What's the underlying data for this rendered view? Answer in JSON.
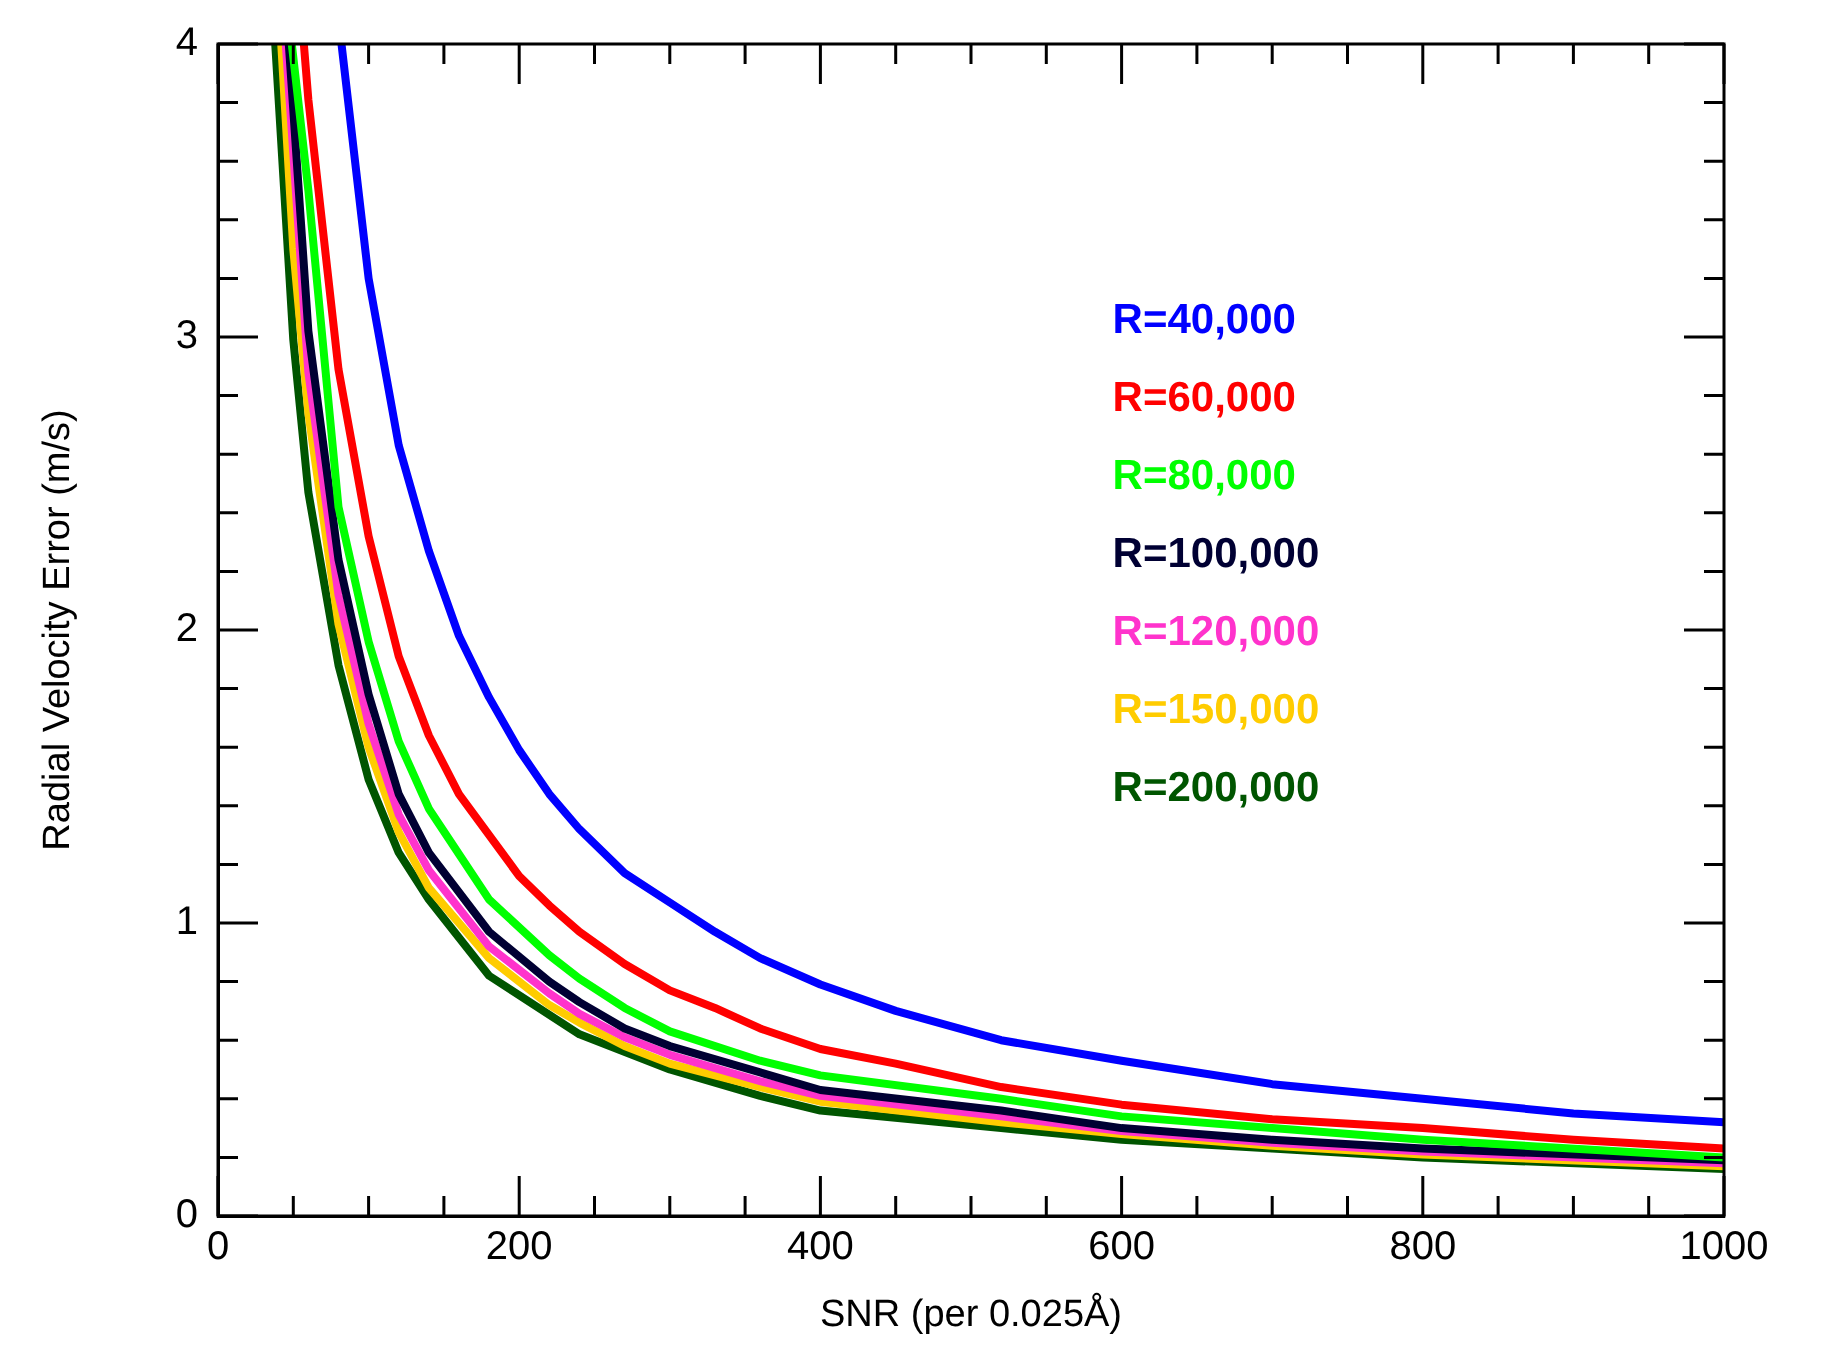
{
  "chart_data": {
    "type": "line",
    "xlabel": "SNR (per 0.025Å)",
    "ylabel": "Radial Velocity Error (m/s)",
    "xlim": [
      0,
      1000
    ],
    "ylim": [
      0,
      4
    ],
    "xticks": [
      0,
      {
        "value": 50,
        "label": null
      },
      {
        "value": 100,
        "label": null
      },
      {
        "value": 150,
        "label": null
      },
      200,
      {
        "value": 250,
        "label": null
      },
      {
        "value": 300,
        "label": null
      },
      {
        "value": 350,
        "label": null
      },
      400,
      {
        "value": 450,
        "label": null
      },
      {
        "value": 500,
        "label": null
      },
      {
        "value": 550,
        "label": null
      },
      600,
      {
        "value": 650,
        "label": null
      },
      {
        "value": 700,
        "label": null
      },
      {
        "value": 750,
        "label": null
      },
      800,
      {
        "value": 850,
        "label": null
      },
      {
        "value": 900,
        "label": null
      },
      {
        "value": 950,
        "label": null
      },
      1000
    ],
    "yticks": [
      0,
      {
        "value": 0.2,
        "label": null
      },
      {
        "value": 0.4,
        "label": null
      },
      {
        "value": 0.6,
        "label": null
      },
      {
        "value": 0.8,
        "label": null
      },
      1,
      {
        "value": 1.2,
        "label": null
      },
      {
        "value": 1.4,
        "label": null
      },
      {
        "value": 1.6,
        "label": null
      },
      {
        "value": 1.8,
        "label": null
      },
      2,
      {
        "value": 2.2,
        "label": null
      },
      {
        "value": 2.4,
        "label": null
      },
      {
        "value": 2.6,
        "label": null
      },
      {
        "value": 2.8,
        "label": null
      },
      3,
      {
        "value": 3.2,
        "label": null
      },
      {
        "value": 3.4,
        "label": null
      },
      {
        "value": 3.6,
        "label": null
      },
      {
        "value": 3.8,
        "label": null
      },
      4
    ],
    "grid": false,
    "legend": "right",
    "marker": "none",
    "line_style": "solid",
    "series": [
      {
        "name": "R=40,000",
        "color": "#0000ff",
        "x": [
          82,
          100,
          120,
          140,
          160,
          180,
          200,
          220,
          240,
          270,
          300,
          330,
          360,
          400,
          450,
          520,
          600,
          700,
          800,
          900,
          1000
        ],
        "values": [
          4.0,
          3.2,
          2.63,
          2.27,
          1.98,
          1.77,
          1.59,
          1.44,
          1.32,
          1.17,
          1.07,
          0.97,
          0.88,
          0.79,
          0.7,
          0.6,
          0.53,
          0.45,
          0.4,
          0.35,
          0.32
        ]
      },
      {
        "name": "R=60,000",
        "color": "#ff0000",
        "x": [
          57,
          60,
          80,
          100,
          120,
          140,
          160,
          200,
          220,
          240,
          270,
          300,
          330,
          360,
          400,
          450,
          520,
          600,
          700,
          800,
          900,
          1000
        ],
        "values": [
          4.0,
          3.81,
          2.89,
          2.32,
          1.91,
          1.64,
          1.44,
          1.16,
          1.06,
          0.97,
          0.86,
          0.77,
          0.71,
          0.64,
          0.57,
          0.52,
          0.44,
          0.38,
          0.33,
          0.3,
          0.26,
          0.23
        ]
      },
      {
        "name": "R=80,000",
        "color": "#00ff00",
        "x": [
          49,
          60,
          80,
          100,
          120,
          140,
          180,
          220,
          240,
          270,
          300,
          360,
          400,
          520,
          600,
          700,
          800,
          1000
        ],
        "values": [
          4.0,
          3.5,
          2.42,
          1.96,
          1.62,
          1.39,
          1.08,
          0.89,
          0.81,
          0.71,
          0.63,
          0.53,
          0.48,
          0.4,
          0.34,
          0.3,
          0.26,
          0.2
        ]
      },
      {
        "name": "R=100,000",
        "color": "#000033",
        "x": [
          47,
          60,
          80,
          100,
          120,
          140,
          180,
          220,
          240,
          270,
          300,
          360,
          400,
          520,
          600,
          700,
          800,
          1000
        ],
        "values": [
          4.0,
          3.02,
          2.24,
          1.78,
          1.44,
          1.24,
          0.97,
          0.8,
          0.73,
          0.64,
          0.58,
          0.49,
          0.43,
          0.36,
          0.3,
          0.26,
          0.23,
          0.19
        ]
      },
      {
        "name": "R=120,000",
        "color": "#ff33cc",
        "x": [
          45,
          60,
          80,
          100,
          120,
          140,
          180,
          220,
          240,
          270,
          300,
          360,
          400,
          520,
          600,
          700,
          800,
          1000
        ],
        "values": [
          4.0,
          2.88,
          2.12,
          1.68,
          1.37,
          1.18,
          0.92,
          0.76,
          0.69,
          0.61,
          0.55,
          0.46,
          0.41,
          0.34,
          0.29,
          0.25,
          0.22,
          0.18
        ]
      },
      {
        "name": "R=150,000",
        "color": "#ffcc00",
        "x": [
          42,
          50,
          60,
          80,
          100,
          120,
          140,
          180,
          220,
          240,
          270,
          300,
          360,
          400,
          520,
          600,
          700,
          800,
          1000
        ],
        "values": [
          4.0,
          3.3,
          2.74,
          2.02,
          1.6,
          1.31,
          1.12,
          0.88,
          0.72,
          0.66,
          0.58,
          0.52,
          0.44,
          0.39,
          0.32,
          0.28,
          0.24,
          0.21,
          0.17
        ]
      },
      {
        "name": "R=200,000",
        "color": "#005500",
        "x": [
          38,
          50,
          60,
          80,
          100,
          120,
          140,
          180,
          240,
          300,
          360,
          400,
          520,
          600,
          700,
          800,
          1000
        ],
        "values": [
          4.0,
          2.99,
          2.47,
          1.88,
          1.49,
          1.24,
          1.08,
          0.82,
          0.62,
          0.5,
          0.41,
          0.36,
          0.3,
          0.26,
          0.23,
          0.2,
          0.16
        ]
      }
    ]
  }
}
